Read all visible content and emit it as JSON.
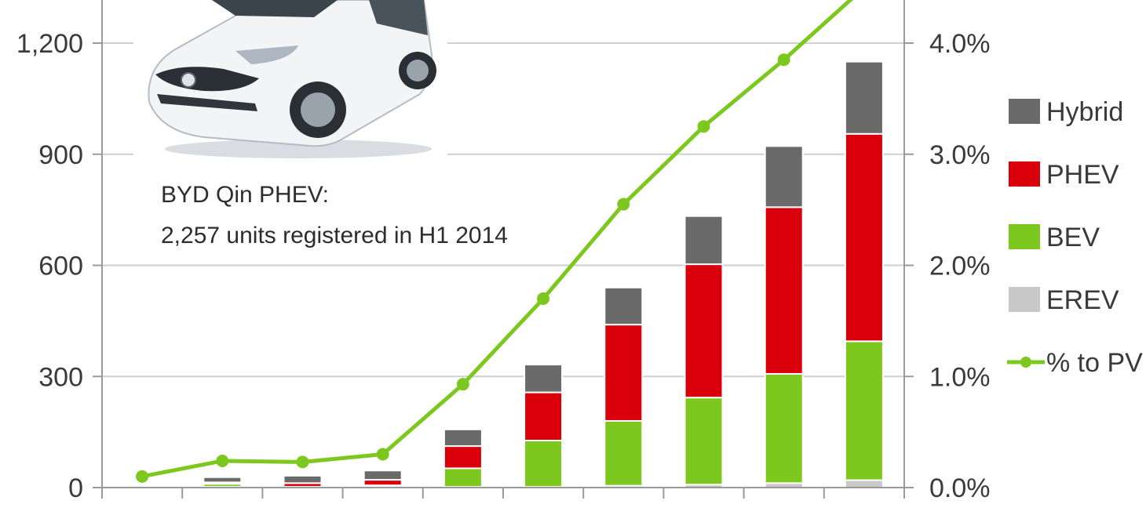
{
  "chart_data": {
    "type": "bar",
    "stacked": true,
    "title": "",
    "xlabel": "",
    "ylabel": "",
    "categories": [
      "",
      "",
      "",
      "",
      "",
      "",
      "",
      "",
      "",
      ""
    ],
    "ylim": [
      0,
      1200
    ],
    "y_ticks": [
      "0",
      "300",
      "600",
      "900",
      "1,200"
    ],
    "y2lim": [
      0,
      4.0
    ],
    "y2_ticks": [
      "0.0%",
      "1.0%",
      "2.0%",
      "3.0%",
      "4.0%"
    ],
    "series": [
      {
        "name": "EREV",
        "type": "bar",
        "axis": "left",
        "color": "#c8c8c8",
        "values": [
          0,
          2,
          2,
          3,
          2,
          2,
          5,
          8,
          12,
          20
        ]
      },
      {
        "name": "BEV",
        "type": "bar",
        "axis": "left",
        "color": "#7dc81e",
        "values": [
          0,
          8,
          0,
          3,
          50,
          125,
          175,
          235,
          295,
          375
        ]
      },
      {
        "name": "PHEV",
        "type": "bar",
        "axis": "left",
        "color": "#d9000b",
        "values": [
          0,
          4,
          10,
          15,
          60,
          130,
          260,
          360,
          450,
          560
        ]
      },
      {
        "name": "Hybrid",
        "type": "bar",
        "axis": "left",
        "color": "#6a6a6a",
        "values": [
          0,
          14,
          20,
          25,
          45,
          75,
          100,
          130,
          165,
          195
        ]
      },
      {
        "name": "% to PV",
        "type": "line",
        "axis": "right",
        "color": "#7dc81e",
        "values": [
          0.1,
          0.24,
          0.23,
          0.3,
          0.93,
          1.7,
          2.55,
          3.25,
          3.85,
          4.5
        ]
      }
    ],
    "legend": {
      "position": "right",
      "order": [
        "Hybrid",
        "PHEV",
        "BEV",
        "EREV",
        "% to PV"
      ]
    },
    "grid": true,
    "annotation": {
      "line1": "BYD Qin PHEV:",
      "line2": "2,257 units registered in H1 2014"
    }
  },
  "colors": {
    "grid": "#cfcfcf",
    "axis": "#9a9a9a",
    "car_body": "#f2f4f6"
  }
}
